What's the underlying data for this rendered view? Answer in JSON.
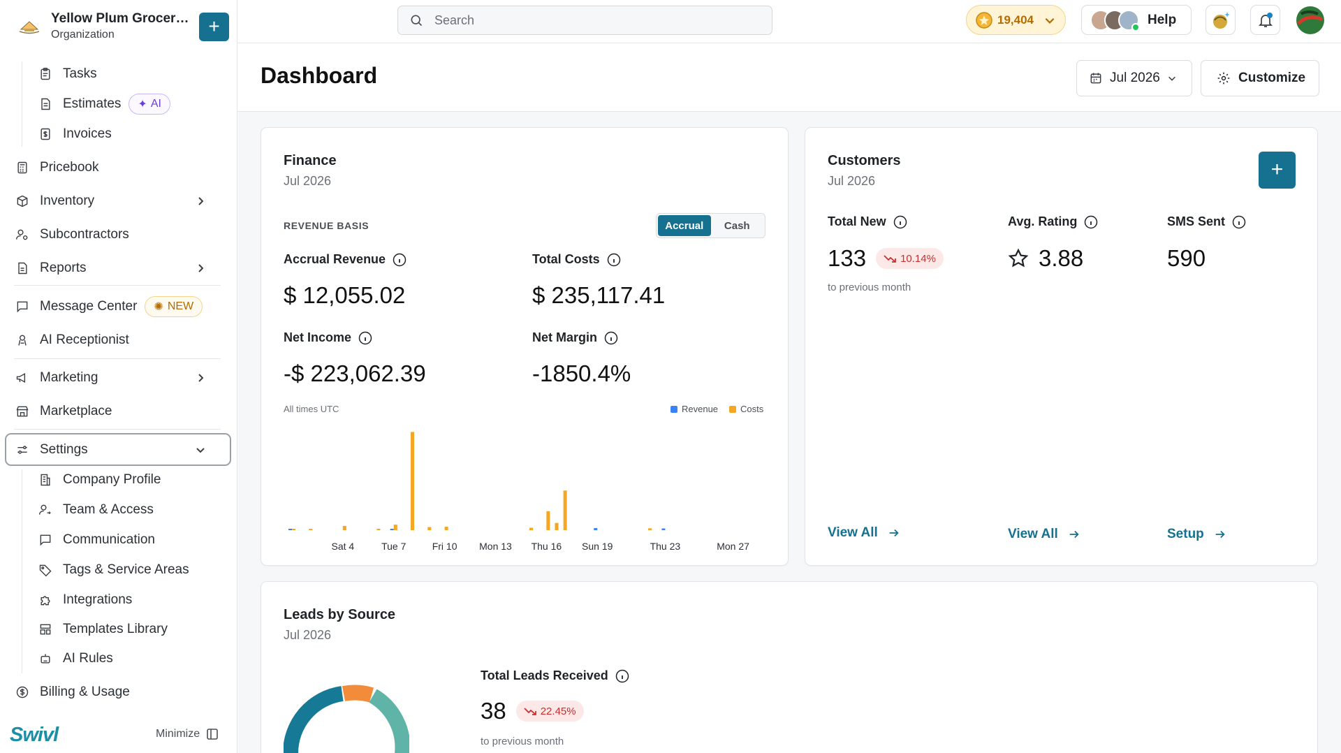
{
  "org": {
    "name": "Yellow Plum Grocers...",
    "subtitle": "Organization"
  },
  "sidebar": {
    "items": [
      {
        "label": "Tasks"
      },
      {
        "label": "Estimates",
        "badge": "AI"
      },
      {
        "label": "Invoices"
      },
      {
        "label": "Pricebook"
      },
      {
        "label": "Inventory"
      },
      {
        "label": "Subcontractors"
      },
      {
        "label": "Reports"
      },
      {
        "label": "Message Center",
        "badge": "NEW"
      },
      {
        "label": "AI Receptionist"
      },
      {
        "label": "Marketing"
      },
      {
        "label": "Marketplace"
      },
      {
        "label": "Settings"
      },
      {
        "label": "Company Profile"
      },
      {
        "label": "Team & Access"
      },
      {
        "label": "Communication"
      },
      {
        "label": "Tags & Service Areas"
      },
      {
        "label": "Integrations"
      },
      {
        "label": "Templates Library"
      },
      {
        "label": "AI Rules"
      },
      {
        "label": "Billing & Usage"
      }
    ],
    "brand": "Swivl",
    "minimize_label": "Minimize"
  },
  "topbar": {
    "search_placeholder": "Search",
    "credits": "19,404",
    "help_label": "Help"
  },
  "header": {
    "title": "Dashboard",
    "date_label": "Jul 2026",
    "customize_label": "Customize"
  },
  "finance": {
    "title": "Finance",
    "period": "Jul 2026",
    "basis_label": "REVENUE BASIS",
    "toggle_on": "Accrual",
    "toggle_off": "Cash",
    "accrual_revenue_label": "Accrual Revenue",
    "accrual_revenue_value": "$ 12,055.02",
    "total_costs_label": "Total Costs",
    "total_costs_value": "$ 235,117.41",
    "net_income_label": "Net Income",
    "net_income_value": "-$ 223,062.39",
    "net_margin_label": "Net Margin",
    "net_margin_value": "-1850.4%",
    "timezone_note": "All times UTC",
    "legend_revenue": "Revenue",
    "legend_costs": "Costs"
  },
  "chart_data": {
    "type": "bar",
    "x_ticks": [
      "Sat 4",
      "Tue 7",
      "Fri 10",
      "Mon 13",
      "Thu 16",
      "Sun 19",
      "Thu 23",
      "Mon 27"
    ],
    "days": [
      1,
      2,
      3,
      4,
      5,
      6,
      7,
      8,
      9,
      10,
      11,
      12,
      13,
      14,
      15,
      16,
      16.5,
      17,
      18,
      19,
      20,
      21,
      22,
      23,
      24,
      25,
      26,
      27,
      28
    ],
    "series": [
      {
        "name": "Revenue",
        "color": "#3b82f6",
        "values": [
          0.3,
          0,
          0,
          0,
          0,
          0,
          0.2,
          0,
          0,
          0,
          0,
          0,
          0,
          0,
          0,
          0,
          0,
          0,
          0,
          1.2,
          0,
          0,
          0,
          1.0,
          0,
          0,
          0,
          0,
          0
        ]
      },
      {
        "name": "Costs",
        "color": "#f5a623",
        "values": [
          0.6,
          0.8,
          0,
          2.5,
          0,
          0.5,
          3.2,
          57,
          1.8,
          2.0,
          0,
          0,
          0,
          0,
          1.4,
          11,
          4.2,
          23,
          0,
          0,
          0,
          0,
          1.1,
          0,
          0,
          0,
          0,
          0,
          0
        ]
      }
    ]
  },
  "customers": {
    "title": "Customers",
    "period": "Jul 2026",
    "total_new_label": "Total New",
    "total_new_value": "133",
    "total_new_change": "10.14%",
    "total_new_note": "to previous month",
    "avg_rating_label": "Avg. Rating",
    "avg_rating_value": "3.88",
    "sms_label": "SMS Sent",
    "sms_value": "590",
    "view_all_1": "View All",
    "view_all_2": "View All",
    "setup": "Setup"
  },
  "leads": {
    "title": "Leads by Source",
    "period": "Jul 2026",
    "total_label": "Total Leads Received",
    "total_value": "38",
    "change": "22.45%",
    "note": "to previous month"
  },
  "colors": {
    "accent": "#15718f",
    "revenue": "#3b82f6",
    "costs": "#f5a623",
    "danger": "#c53030"
  }
}
